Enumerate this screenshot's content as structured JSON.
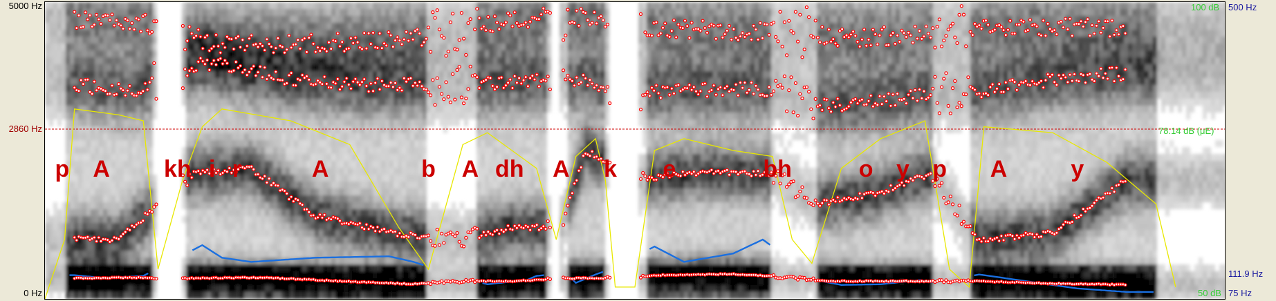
{
  "axes": {
    "freq_top": "5000 Hz",
    "freq_cursor": "2860 Hz",
    "freq_bottom": "0 Hz",
    "intensity_top": "100 dB",
    "intensity_cursor": "78.14 dB (μE)",
    "intensity_bottom": "50 dB",
    "pitch_top": "500 Hz",
    "pitch_mid": "111.9 Hz",
    "pitch_bottom": "75 Hz"
  },
  "colors": {
    "background": "#ece9d8",
    "formant": "#ff0000",
    "intensity": "#e8e800",
    "pitch": "#1a6fe0",
    "cursor": "#d00000",
    "freq_label": "#a00000",
    "intensity_label": "#33cc33",
    "pitch_label": "#1a1aa0",
    "segment_label": "#cc0000"
  },
  "chart_data": {
    "type": "spectrogram",
    "duration_s": 2.4,
    "frequency_range_hz": [
      0,
      5000
    ],
    "intensity_range_db": [
      50,
      100
    ],
    "pitch_range_hz": [
      75,
      500
    ],
    "cursor": {
      "frequency_hz": 2860,
      "intensity_db": 78.14
    },
    "segments": [
      {
        "label": "p",
        "t": 0.035
      },
      {
        "label": "A",
        "t": 0.115
      },
      {
        "label": "kh",
        "t": 0.27
      },
      {
        "label": "i",
        "t": 0.34
      },
      {
        "label": "r",
        "t": 0.39
      },
      {
        "label": "A",
        "t": 0.56
      },
      {
        "label": "b",
        "t": 0.78
      },
      {
        "label": "A",
        "t": 0.865
      },
      {
        "label": "dh",
        "t": 0.945
      },
      {
        "label": "A",
        "t": 1.05
      },
      {
        "label": "k",
        "t": 1.15
      },
      {
        "label": "e",
        "t": 1.27
      },
      {
        "label": "bh",
        "t": 1.49
      },
      {
        "label": "o",
        "t": 1.67
      },
      {
        "label": "y",
        "t": 1.745
      },
      {
        "label": "p",
        "t": 1.82
      },
      {
        "label": "A",
        "t": 1.94
      },
      {
        "label": "y",
        "t": 2.1
      }
    ],
    "voiced_regions": [
      [
        0.04,
        0.22
      ],
      [
        0.29,
        0.78
      ],
      [
        0.88,
        1.02
      ],
      [
        1.06,
        1.14
      ],
      [
        1.22,
        1.48
      ],
      [
        1.57,
        1.81
      ],
      [
        1.88,
        2.26
      ]
    ],
    "silence_regions": [
      [
        0.23,
        0.28
      ],
      [
        1.03,
        1.05
      ],
      [
        1.15,
        1.21
      ]
    ],
    "formants": {
      "F1": [
        [
          0.06,
          350
        ],
        [
          0.1,
          350
        ],
        [
          0.18,
          360
        ],
        [
          0.3,
          350
        ],
        [
          0.45,
          360
        ],
        [
          0.6,
          300
        ],
        [
          0.75,
          250
        ],
        [
          0.85,
          300
        ],
        [
          0.95,
          300
        ],
        [
          1.08,
          350
        ],
        [
          1.15,
          350
        ],
        [
          1.25,
          400
        ],
        [
          1.4,
          420
        ],
        [
          1.48,
          380
        ],
        [
          1.6,
          300
        ],
        [
          1.75,
          300
        ],
        [
          1.9,
          300
        ],
        [
          2.05,
          260
        ],
        [
          2.2,
          240
        ]
      ],
      "F2": [
        [
          0.06,
          1000
        ],
        [
          0.15,
          1000
        ],
        [
          0.3,
          2100
        ],
        [
          0.42,
          2200
        ],
        [
          0.55,
          1400
        ],
        [
          0.72,
          1100
        ],
        [
          0.85,
          1000
        ],
        [
          0.95,
          1200
        ],
        [
          1.05,
          1200
        ],
        [
          1.1,
          2500
        ],
        [
          1.2,
          2000
        ],
        [
          1.35,
          2150
        ],
        [
          1.48,
          2100
        ],
        [
          1.57,
          1600
        ],
        [
          1.7,
          1800
        ],
        [
          1.8,
          2100
        ],
        [
          1.9,
          1000
        ],
        [
          2.05,
          1100
        ],
        [
          2.2,
          2000
        ]
      ],
      "F3": [
        [
          0.06,
          3600
        ],
        [
          0.18,
          3500
        ],
        [
          0.32,
          4000
        ],
        [
          0.5,
          3700
        ],
        [
          0.65,
          3600
        ],
        [
          0.85,
          3600
        ],
        [
          1.05,
          3700
        ],
        [
          1.25,
          3500
        ],
        [
          1.45,
          3550
        ],
        [
          1.6,
          3250
        ],
        [
          1.75,
          3400
        ],
        [
          1.9,
          3500
        ],
        [
          2.05,
          3700
        ],
        [
          2.2,
          3800
        ]
      ],
      "F4": [
        [
          0.06,
          4700
        ],
        [
          0.2,
          4650
        ],
        [
          0.35,
          4300
        ],
        [
          0.55,
          4300
        ],
        [
          0.75,
          4400
        ],
        [
          0.9,
          4600
        ],
        [
          1.05,
          4800
        ],
        [
          1.25,
          4550
        ],
        [
          1.45,
          4500
        ],
        [
          1.65,
          4400
        ],
        [
          1.85,
          4500
        ],
        [
          2.05,
          4600
        ],
        [
          2.2,
          4550
        ]
      ]
    },
    "intensity_db": [
      [
        0.0,
        50
      ],
      [
        0.04,
        60
      ],
      [
        0.06,
        82
      ],
      [
        0.15,
        81
      ],
      [
        0.2,
        80
      ],
      [
        0.23,
        55
      ],
      [
        0.28,
        70
      ],
      [
        0.32,
        79
      ],
      [
        0.36,
        82
      ],
      [
        0.5,
        80
      ],
      [
        0.62,
        76
      ],
      [
        0.72,
        62
      ],
      [
        0.78,
        55
      ],
      [
        0.85,
        76
      ],
      [
        0.9,
        78
      ],
      [
        1.0,
        72
      ],
      [
        1.04,
        60
      ],
      [
        1.08,
        74
      ],
      [
        1.12,
        77
      ],
      [
        1.14,
        70
      ],
      [
        1.16,
        52
      ],
      [
        1.2,
        52
      ],
      [
        1.24,
        75
      ],
      [
        1.3,
        77
      ],
      [
        1.4,
        75
      ],
      [
        1.48,
        74
      ],
      [
        1.52,
        60
      ],
      [
        1.56,
        56
      ],
      [
        1.62,
        72
      ],
      [
        1.7,
        77
      ],
      [
        1.79,
        80
      ],
      [
        1.84,
        55
      ],
      [
        1.88,
        52
      ],
      [
        1.91,
        79
      ],
      [
        2.05,
        78
      ],
      [
        2.16,
        73
      ],
      [
        2.26,
        66
      ],
      [
        2.3,
        52
      ]
    ],
    "pitch_hz": [
      [
        0.06,
        109
      ],
      [
        0.12,
        105
      ],
      [
        0.2,
        108
      ],
      [
        0.32,
        152
      ],
      [
        0.36,
        134
      ],
      [
        0.42,
        128
      ],
      [
        0.55,
        134
      ],
      [
        0.7,
        136
      ],
      [
        0.75,
        128
      ],
      [
        0.85,
        105
      ],
      [
        0.9,
        96
      ],
      [
        0.98,
        102
      ],
      [
        1.0,
        108
      ],
      [
        1.06,
        112
      ],
      [
        1.08,
        98
      ],
      [
        1.12,
        110
      ],
      [
        1.14,
        115
      ],
      [
        1.24,
        150
      ],
      [
        1.3,
        128
      ],
      [
        1.4,
        140
      ],
      [
        1.46,
        160
      ],
      [
        1.5,
        140
      ],
      [
        1.56,
        103
      ],
      [
        1.62,
        95
      ],
      [
        1.7,
        96
      ],
      [
        1.78,
        102
      ],
      [
        1.81,
        98
      ],
      [
        1.9,
        110
      ],
      [
        2.0,
        100
      ],
      [
        2.1,
        90
      ],
      [
        2.2,
        85
      ]
    ]
  }
}
